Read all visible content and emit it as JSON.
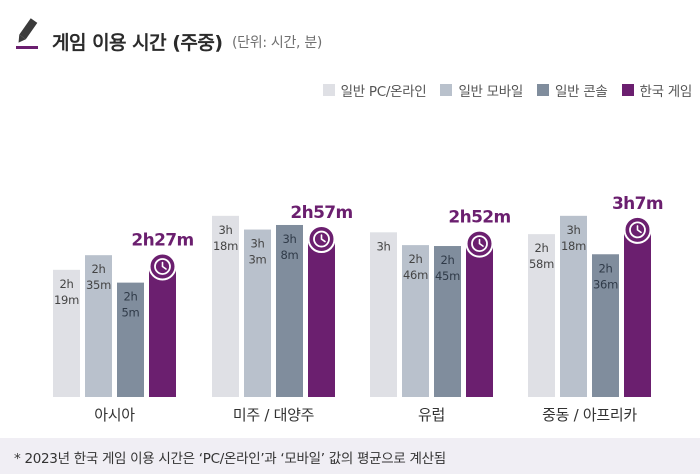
{
  "title": "게임 이용 시간 (주중)",
  "subtitle": "(단위: 시간, 분)",
  "footnote": "* 2023년 한국 게임 이용 시간은 ‘PC/온라인’과 ‘모바일’ 값의 평균으로 계산됨",
  "icons": {
    "title": "pencil-icon",
    "highlight": "clock-icon"
  },
  "colors": {
    "pc_online": "#dfe0e5",
    "general_mobile": "#b9c1cc",
    "general_console": "#808d9d",
    "korea_game": "#6b1f6f",
    "bar_label": "#444444",
    "highlight_label": "#6b1f6f",
    "footnote_bg": "#f0eef4"
  },
  "chart_data": {
    "type": "bar",
    "categories": [
      "아시아",
      "미주 / 대양주",
      "유럽",
      "중동 / 아프리카"
    ],
    "ylim": [
      0,
      200
    ],
    "series": [
      {
        "name": "일반 PC/온라인",
        "values": [
          139,
          198,
          180,
          178
        ],
        "labels": [
          [
            "2h",
            "19m"
          ],
          [
            "3h",
            "18m"
          ],
          [
            "3h"
          ],
          [
            "2h",
            "58m"
          ]
        ]
      },
      {
        "name": "일반 모바일",
        "values": [
          155,
          183,
          166,
          198
        ],
        "labels": [
          [
            "2h",
            "35m"
          ],
          [
            "3h",
            "3m"
          ],
          [
            "2h",
            "46m"
          ],
          [
            "3h",
            "18m"
          ]
        ]
      },
      {
        "name": "일반 콘솔",
        "values": [
          125,
          188,
          165,
          156
        ],
        "labels": [
          [
            "2h",
            "5m"
          ],
          [
            "3h",
            "8m"
          ],
          [
            "2h",
            "45m"
          ],
          [
            "2h",
            "36m"
          ]
        ]
      },
      {
        "name": "한국 게임",
        "values": [
          147,
          177,
          172,
          187
        ],
        "labels": [
          [
            "2h27m"
          ],
          [
            "2h57m"
          ],
          [
            "2h52m"
          ],
          [
            "3h7m"
          ]
        ]
      }
    ]
  }
}
